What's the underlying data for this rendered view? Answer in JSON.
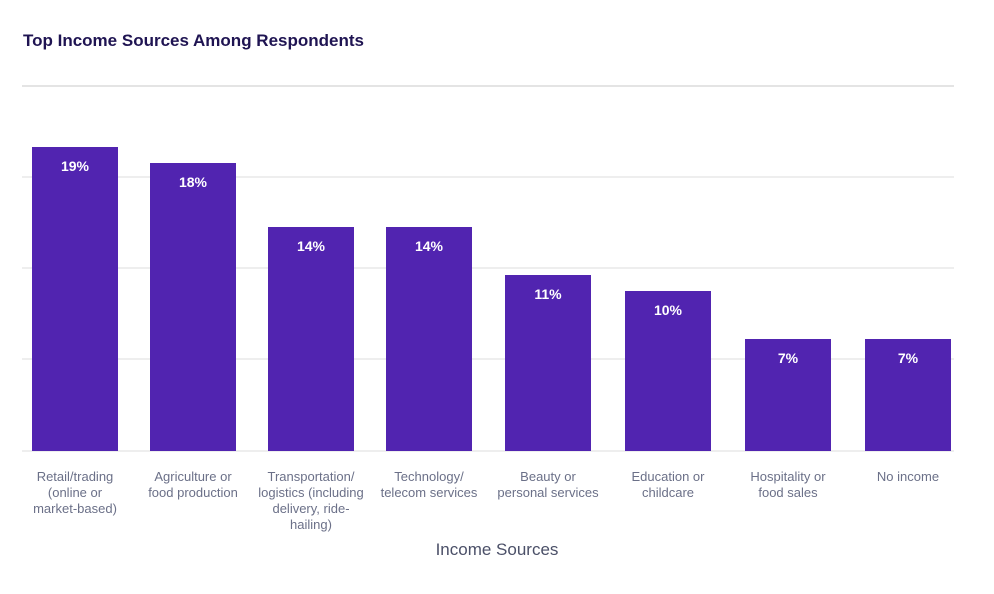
{
  "chart_data": {
    "type": "bar",
    "title": "Top Income Sources Among Respondents",
    "xlabel": "Income Sources",
    "ylabel": "",
    "ylim": [
      0,
      20
    ],
    "grid": true,
    "colors": {
      "bar": "#5124b0",
      "label": "#ffffff",
      "tick": "#6b7088",
      "grid": "#dcdcdc",
      "title": "#1f1452"
    },
    "categories": [
      [
        "Retail/trading",
        "(online or",
        "market-based)"
      ],
      [
        "Agriculture or",
        "food production"
      ],
      [
        "Transportation/",
        "logistics (including",
        "delivery, ride-",
        "hailing)"
      ],
      [
        "Technology/",
        "telecom services"
      ],
      [
        "Beauty or",
        "personal services"
      ],
      [
        "Education or",
        "childcare"
      ],
      [
        "Hospitality or",
        "food sales"
      ],
      [
        "No income"
      ]
    ],
    "values": [
      19,
      18,
      14,
      14,
      11,
      10,
      7,
      7
    ],
    "value_labels": [
      "19%",
      "18%",
      "14%",
      "14%",
      "11%",
      "10%",
      "7%",
      "7%"
    ]
  }
}
